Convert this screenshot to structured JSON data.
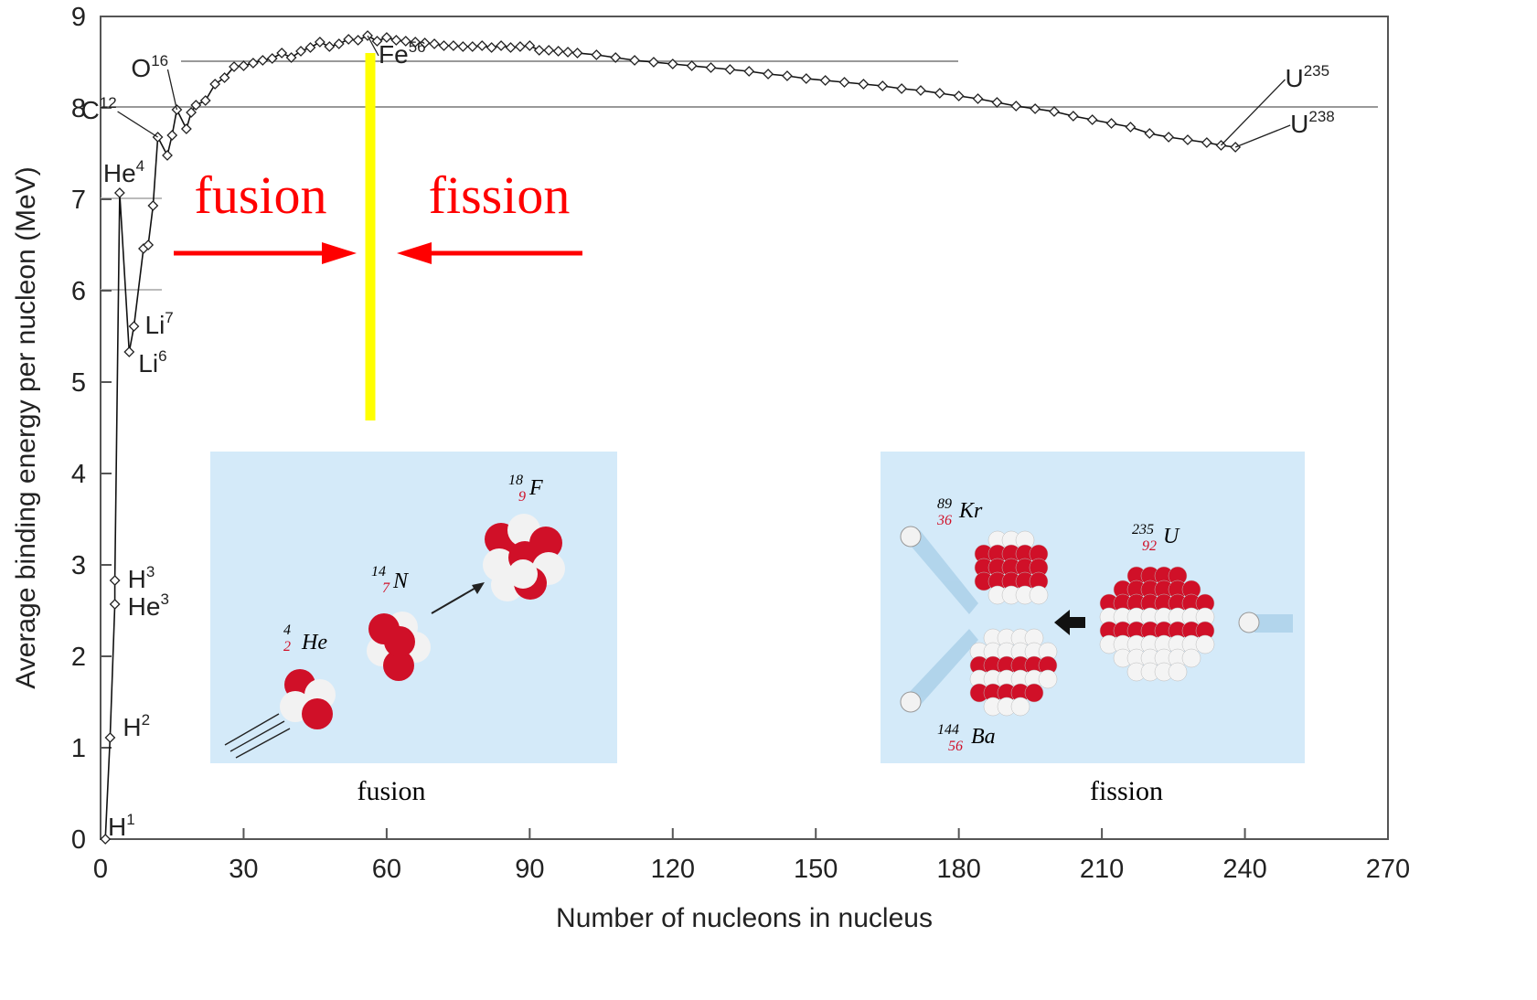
{
  "chart_data": {
    "type": "scatter",
    "xlabel": "Number of nucleons in nucleus",
    "ylabel": "Average binding energy per nucleon (MeV)",
    "xlim": [
      0,
      270
    ],
    "ylim": [
      0,
      9
    ],
    "xticks": [
      "0",
      "30",
      "60",
      "90",
      "120",
      "150",
      "180",
      "210",
      "240",
      "270"
    ],
    "yticks": [
      "0",
      "1",
      "2",
      "3",
      "4",
      "5",
      "6",
      "7",
      "8",
      "9"
    ],
    "grid": "horizontal reference lines at 8, 8.5 and partial at 6, 7",
    "series": [
      {
        "x": [
          1,
          2,
          3,
          3,
          4,
          6,
          7,
          9,
          10,
          11,
          12,
          14,
          15,
          16,
          18,
          19,
          20,
          22,
          24,
          26,
          28,
          30,
          32,
          34,
          36,
          38,
          40,
          42,
          44,
          46,
          48,
          50,
          52,
          54,
          56,
          58,
          60,
          62,
          64,
          66,
          68,
          70,
          72,
          74,
          76,
          78,
          80,
          82,
          84,
          86,
          88,
          90,
          92,
          94,
          96,
          98,
          100,
          104,
          108,
          112,
          116,
          120,
          124,
          128,
          132,
          136,
          140,
          144,
          148,
          152,
          156,
          160,
          164,
          168,
          172,
          176,
          180,
          184,
          188,
          192,
          196,
          200,
          204,
          208,
          212,
          216,
          220,
          224,
          228,
          232,
          235,
          238
        ],
        "y": [
          0,
          1.11,
          2.57,
          2.83,
          7.07,
          5.33,
          5.61,
          6.46,
          6.5,
          6.93,
          7.68,
          7.48,
          7.7,
          7.98,
          7.77,
          7.95,
          8.03,
          8.08,
          8.26,
          8.33,
          8.45,
          8.46,
          8.49,
          8.52,
          8.54,
          8.6,
          8.55,
          8.62,
          8.66,
          8.72,
          8.67,
          8.7,
          8.75,
          8.74,
          8.79,
          8.73,
          8.77,
          8.74,
          8.73,
          8.72,
          8.71,
          8.7,
          8.68,
          8.68,
          8.67,
          8.67,
          8.68,
          8.66,
          8.68,
          8.66,
          8.67,
          8.68,
          8.63,
          8.63,
          8.62,
          8.61,
          8.6,
          8.58,
          8.55,
          8.52,
          8.5,
          8.48,
          8.46,
          8.44,
          8.42,
          8.4,
          8.37,
          8.35,
          8.32,
          8.3,
          8.28,
          8.26,
          8.24,
          8.21,
          8.19,
          8.16,
          8.13,
          8.1,
          8.06,
          8.02,
          7.99,
          7.96,
          7.91,
          7.87,
          7.83,
          7.79,
          7.72,
          7.68,
          7.65,
          7.62,
          7.59,
          7.57
        ]
      }
    ],
    "annotations": [
      {
        "text": "H",
        "sup": "1",
        "x": 0,
        "y": 0
      },
      {
        "text": "H",
        "sup": "2",
        "x": 2,
        "y": 1.11
      },
      {
        "text": "H",
        "sup": "3",
        "x": 3,
        "y": 2.83
      },
      {
        "text": "He",
        "sup": "3",
        "x": 3,
        "y": 2.57
      },
      {
        "text": "He",
        "sup": "4",
        "x": 4,
        "y": 7.07
      },
      {
        "text": "Li",
        "sup": "6",
        "x": 6,
        "y": 5.33
      },
      {
        "text": "Li",
        "sup": "7",
        "x": 7,
        "y": 5.61
      },
      {
        "text": "C",
        "sup": "12",
        "x": 12,
        "y": 7.68
      },
      {
        "text": "O",
        "sup": "16",
        "x": 16,
        "y": 7.98
      },
      {
        "text": "Fe",
        "sup": "56",
        "x": 56,
        "y": 8.79
      },
      {
        "text": "U",
        "sup": "235",
        "x": 235,
        "y": 7.59
      },
      {
        "text": "U",
        "sup": "238",
        "x": 238,
        "y": 7.57
      }
    ]
  },
  "overlay": {
    "fusion_label": "fusion",
    "fission_label": "fission",
    "divider_color": "#ffff00",
    "arrow_color": "#ff0000",
    "label_color": "#ff0000"
  },
  "insets": {
    "fusion": {
      "caption": "fusion",
      "background": "#d4eaf9",
      "isotopes": [
        {
          "mass": "4",
          "atomic": "2",
          "symbol": "He"
        },
        {
          "mass": "14",
          "atomic": "7",
          "symbol": "N"
        },
        {
          "mass": "18",
          "atomic": "9",
          "symbol": "F"
        }
      ]
    },
    "fission": {
      "caption": "fission",
      "background": "#d4eaf9",
      "isotopes": [
        {
          "mass": "89",
          "atomic": "36",
          "symbol": "Kr"
        },
        {
          "mass": "235",
          "atomic": "92",
          "symbol": "U"
        },
        {
          "mass": "144",
          "atomic": "56",
          "symbol": "Ba"
        }
      ]
    }
  }
}
